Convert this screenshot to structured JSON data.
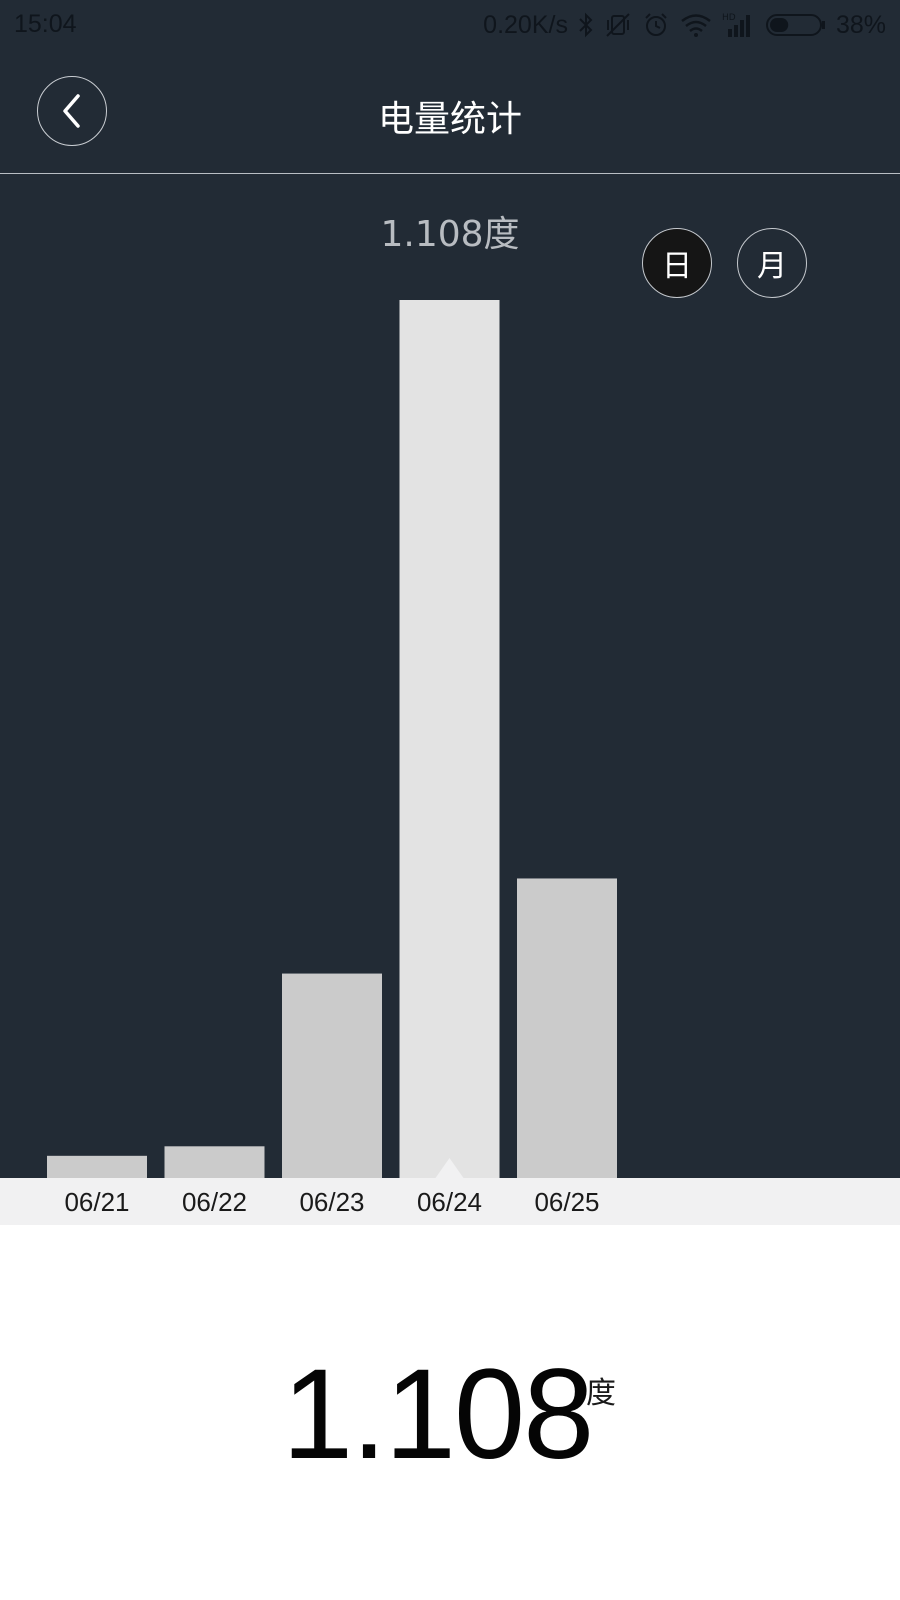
{
  "status_bar": {
    "time": "15:04",
    "network_speed": "0.20K/s",
    "battery_percent": "38%",
    "battery_level": 0.38,
    "icons": [
      "bluetooth-icon",
      "vibrate-off-icon",
      "alarm-icon",
      "wifi-icon",
      "hd-signal-icon",
      "battery-icon"
    ]
  },
  "header": {
    "title": "电量统计",
    "back_icon": "chevron-left-icon"
  },
  "chart_header": {
    "selected_value": "1.108度",
    "toggles": {
      "day": "日",
      "month": "月"
    }
  },
  "chart_data": {
    "type": "bar",
    "categories": [
      "06/21",
      "06/22",
      "06/23",
      "06/24",
      "06/25"
    ],
    "values": [
      0.028,
      0.04,
      0.258,
      1.108,
      0.378
    ],
    "ylim": [
      0,
      1.108
    ],
    "selected_index": 3,
    "grid": false,
    "colors": {
      "bar": "#cbcbcb",
      "bar_selected": "#e3e3e3",
      "background": "#222b35"
    }
  },
  "summary": {
    "total_value": "1.108",
    "unit": "度"
  }
}
